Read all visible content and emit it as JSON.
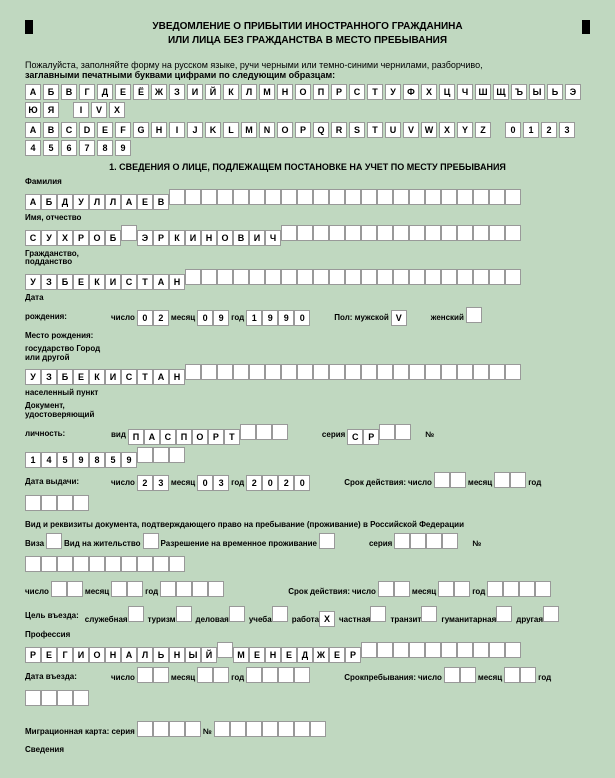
{
  "title1": "УВЕДОМЛЕНИЕ О ПРИБЫТИИ ИНОСТРАННОГО ГРАЖДАНИНА",
  "title2": "ИЛИ ЛИЦА БЕЗ ГРАЖДАНСТВА В МЕСТО ПРЕБЫВАНИЯ",
  "intro1": "Пожалуйста, заполняйте форму на русском языке, ручи черными или темно-синими чернилами, разборчиво,",
  "intro2": "заглавными печатными буквами цифрами по следующим образцам:",
  "alphabet1": [
    "А",
    "Б",
    "В",
    "Г",
    "Д",
    "Е",
    "Ё",
    "Ж",
    "З",
    "И",
    "Й",
    "К",
    "Л",
    "М",
    "Н",
    "О",
    "П",
    "Р",
    "С",
    "Т",
    "У",
    "Ф",
    "Х",
    "Ц",
    "Ч",
    "Ш",
    "Щ",
    "Ъ",
    "Ы",
    "Ь",
    "Э",
    "Ю",
    "Я",
    "",
    "I",
    "V",
    "X"
  ],
  "alphabet2": [
    "A",
    "B",
    "C",
    "D",
    "E",
    "F",
    "G",
    "H",
    "I",
    "J",
    "K",
    "L",
    "M",
    "N",
    "O",
    "P",
    "Q",
    "R",
    "S",
    "T",
    "U",
    "V",
    "W",
    "X",
    "Y",
    "Z",
    "",
    "0",
    "1",
    "2",
    "3",
    "4",
    "5",
    "6",
    "7",
    "8",
    "9"
  ],
  "section1": "1. СВЕДЕНИЯ О ЛИЦЕ, ПОДЛЕЖАЩЕМ ПОСТАНОВКЕ НА УЧЕТ ПО МЕСТУ ПРЕБЫВАНИЯ",
  "lbl_surname": "Фамилия",
  "surname": [
    "А",
    "Б",
    "Д",
    "У",
    "Л",
    "Л",
    "А",
    "Е",
    "В",
    "",
    "",
    "",
    "",
    "",
    "",
    "",
    "",
    "",
    "",
    "",
    "",
    "",
    "",
    "",
    "",
    "",
    "",
    "",
    "",
    "",
    ""
  ],
  "lbl_name": "Имя, отчество",
  "name": [
    "С",
    "У",
    "Х",
    "Р",
    "О",
    "Б",
    "",
    "Э",
    "Р",
    "К",
    "И",
    "Н",
    "О",
    "В",
    "И",
    "Ч",
    "",
    "",
    "",
    "",
    "",
    "",
    "",
    "",
    "",
    "",
    "",
    "",
    "",
    "",
    ""
  ],
  "lbl_citizenship": "Гражданство, подданство",
  "citizenship": [
    "У",
    "З",
    "Б",
    "Е",
    "К",
    "И",
    "С",
    "Т",
    "А",
    "Н",
    "",
    "",
    "",
    "",
    "",
    "",
    "",
    "",
    "",
    "",
    "",
    "",
    "",
    "",
    "",
    "",
    "",
    "",
    "",
    "",
    ""
  ],
  "lbl_date": "Дата",
  "lbl_birth": "рождения:",
  "lbl_day": "число",
  "lbl_month": "месяц",
  "lbl_year": "год",
  "birth_d": [
    "0",
    "2"
  ],
  "birth_m": [
    "0",
    "9"
  ],
  "birth_y": [
    "1",
    "9",
    "9",
    "0"
  ],
  "lbl_sex": "Пол:   мужской",
  "lbl_female": "женский",
  "sex_m": [
    "V"
  ],
  "sex_f": [
    ""
  ],
  "lbl_birthplace": "Место рождения:",
  "lbl_state": "государство Город или другой",
  "state": [
    "У",
    "З",
    "Б",
    "Е",
    "К",
    "И",
    "С",
    "Т",
    "А",
    "Н",
    "",
    "",
    "",
    "",
    "",
    "",
    "",
    "",
    "",
    "",
    "",
    "",
    "",
    "",
    "",
    "",
    "",
    "",
    "",
    "",
    ""
  ],
  "lbl_locality": "населенный пункт",
  "lbl_doc": "Документ, удостоверяющий",
  "lbl_identity": "личность:",
  "lbl_type": "вид",
  "doc_type": [
    "П",
    "А",
    "С",
    "П",
    "О",
    "Р",
    "Т",
    "",
    "",
    ""
  ],
  "lbl_series": "серия",
  "doc_series": [
    "С",
    "Р",
    "",
    ""
  ],
  "lbl_number": "№",
  "doc_number": [
    "1",
    "4",
    "5",
    "9",
    "8",
    "5",
    "9",
    "",
    "",
    ""
  ],
  "lbl_issue": "Дата выдачи:",
  "issue_d": [
    "2",
    "3"
  ],
  "issue_m": [
    "0",
    "3"
  ],
  "issue_y": [
    "2",
    "0",
    "2",
    "0"
  ],
  "lbl_valid": "Срок действия:",
  "valid_d": [
    "",
    ""
  ],
  "valid_m": [
    "",
    ""
  ],
  "valid_y": [
    "",
    "",
    "",
    ""
  ],
  "lbl_stay": "Вид и реквизиты документа, подтверждающего право на пребывание (проживание) в Российской Федерации",
  "lbl_visa": "Виза",
  "lbl_permit": "Вид на жительство",
  "lbl_temp": "Разрешение на временное проживание",
  "visa": [
    ""
  ],
  "permit": [
    ""
  ],
  "temp": [
    ""
  ],
  "stay_series": [
    "",
    "",
    "",
    ""
  ],
  "stay_number": [
    "",
    "",
    "",
    "",
    "",
    "",
    "",
    "",
    "",
    ""
  ],
  "stay_d": [
    "",
    ""
  ],
  "stay_m": [
    "",
    ""
  ],
  "stay_y": [
    "",
    "",
    "",
    ""
  ],
  "valid2_d": [
    "",
    ""
  ],
  "valid2_m": [
    "",
    ""
  ],
  "valid2_y": [
    "",
    "",
    "",
    ""
  ],
  "lbl_purpose": "Цель въезда:",
  "p1": "служебная",
  "p2": "туризм",
  "p3": "деловая",
  "p4": "учеба",
  "p5": "работа",
  "p6": "частная",
  "p7": "транзит",
  "p8": "гуманитарная",
  "p9": "другая",
  "pv": [
    "",
    "",
    "",
    "",
    "X",
    "",
    "",
    "",
    ""
  ],
  "lbl_prof": "Профессия",
  "profession": [
    "Р",
    "Е",
    "Г",
    "И",
    "О",
    "Н",
    "А",
    "Л",
    "Ь",
    "Н",
    "Ы",
    "Й",
    "",
    "М",
    "Е",
    "Н",
    "Е",
    "Д",
    "Ж",
    "Е",
    "Р",
    "",
    "",
    "",
    "",
    "",
    "",
    "",
    "",
    "",
    ""
  ],
  "lbl_entry": "Дата въезда:",
  "entry_d": [
    "",
    ""
  ],
  "entry_m": [
    "",
    ""
  ],
  "entry_y": [
    "",
    "",
    "",
    ""
  ],
  "lbl_staydue": "Срокпребывания:",
  "due_d": [
    "",
    ""
  ],
  "due_m": [
    "",
    ""
  ],
  "due_y": [
    "",
    "",
    "",
    ""
  ],
  "lbl_mig": "Миграционная карта:   серия",
  "mig_s": [
    "",
    "",
    "",
    ""
  ],
  "mig_n": [
    "",
    "",
    "",
    "",
    "",
    "",
    ""
  ],
  "lbl_info": "Сведения"
}
